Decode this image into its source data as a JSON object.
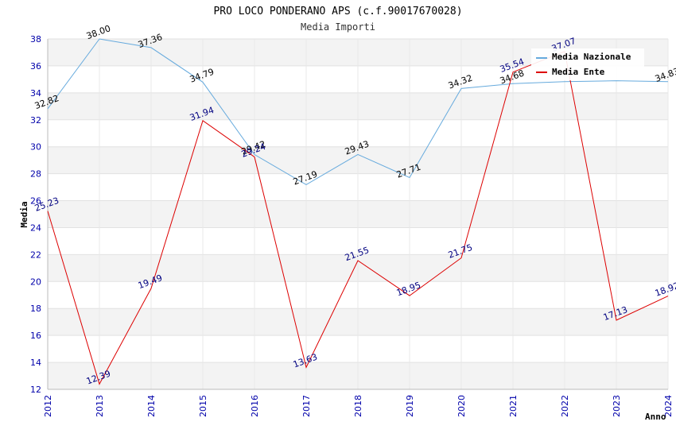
{
  "chart_data": {
    "type": "line",
    "title": "PRO LOCO PONDERANO APS (c.f.90017670028)",
    "subtitle": "Media Importi",
    "xlabel": "Anno",
    "ylabel": "Media",
    "ylim": [
      12,
      38
    ],
    "yticks": [
      12,
      14,
      16,
      18,
      20,
      22,
      24,
      26,
      28,
      30,
      32,
      34,
      36,
      38
    ],
    "x": [
      "2012",
      "2013",
      "2014",
      "2015",
      "2016",
      "2017",
      "2018",
      "2019",
      "2020",
      "2021",
      "2022",
      "2023",
      "2024"
    ],
    "legend_position": "top-right",
    "grid": true,
    "series": [
      {
        "name": "Media Nazionale",
        "color": "#66aadd",
        "values": [
          32.82,
          38.0,
          37.36,
          34.79,
          29.42,
          27.19,
          29.43,
          27.71,
          34.32,
          34.68,
          34.83,
          34.9,
          34.83
        ],
        "labels": [
          "32.82",
          "38.00",
          "37.36",
          "34.79",
          "29.42",
          "27.19",
          "29.43",
          "27.71",
          "34.32",
          "34.68",
          "",
          "",
          "34.83"
        ]
      },
      {
        "name": "Media Ente",
        "color": "#dd0000",
        "values": [
          25.23,
          12.39,
          19.49,
          31.94,
          29.24,
          13.63,
          21.55,
          18.95,
          21.75,
          35.54,
          37.07,
          17.13,
          18.92
        ],
        "labels": [
          "25.23",
          "12.39",
          "19.49",
          "31.94",
          "29.24",
          "13.63",
          "21.55",
          "18.95",
          "21.75",
          "35.54",
          "37.07",
          "17.13",
          "18.92"
        ]
      }
    ]
  }
}
